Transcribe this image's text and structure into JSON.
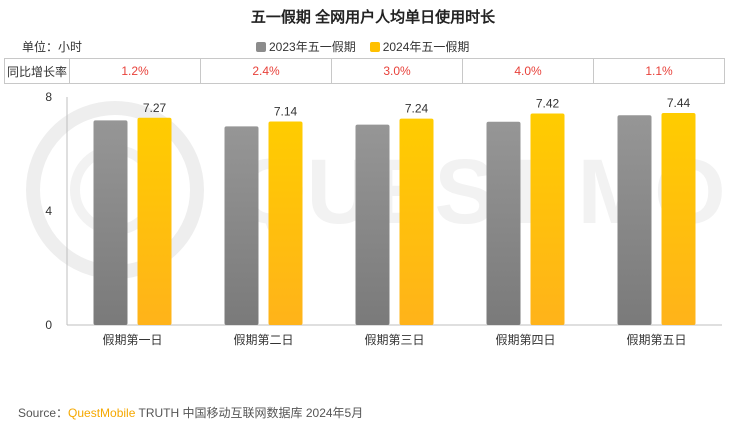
{
  "title": "五一假期 全网用户人均单日使用时长",
  "unit_label": "单位：小时",
  "yoy_header": "同比增长率",
  "yoy_values": [
    "1.2%",
    "2.4%",
    "3.0%",
    "4.0%",
    "1.1%"
  ],
  "colors": {
    "series_2023": "#8c8c8c",
    "series_2024": "#ffc000",
    "yoy_text": "#e8413a",
    "brand": "#f5a800"
  },
  "source": {
    "prefix": "Source：",
    "brand": "QuestMobile",
    "rest": " TRUTH 中国移动互联网数据库 2024年5月"
  },
  "watermark_text": "QUEST MOBILE",
  "chart_data": {
    "type": "bar",
    "title": "五一假期 全网用户人均单日使用时长",
    "ylabel": "单位：小时",
    "categories": [
      "假期第一日",
      "假期第二日",
      "假期第三日",
      "假期第四日",
      "假期第五日"
    ],
    "series": [
      {
        "name": "2023年五一假期",
        "values": [
          7.18,
          6.97,
          7.03,
          7.13,
          7.36
        ],
        "color": "#8c8c8c",
        "labels": [
          "",
          "",
          "",
          "",
          ""
        ]
      },
      {
        "name": "2024年五一假期",
        "values": [
          7.27,
          7.14,
          7.24,
          7.42,
          7.44
        ],
        "color": "#ffc000",
        "labels": [
          "7.27",
          "7.14",
          "7.24",
          "7.42",
          "7.44"
        ]
      }
    ],
    "ylim": [
      0,
      8
    ],
    "yticks": [
      "0",
      "4",
      "8"
    ],
    "grid": false,
    "legend_position": "top"
  }
}
